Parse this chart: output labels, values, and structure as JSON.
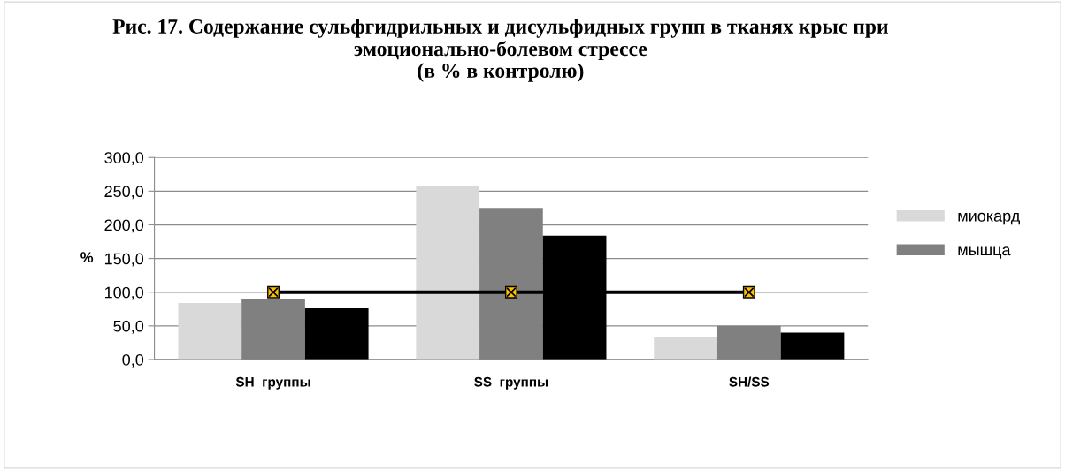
{
  "chart_data": {
    "type": "bar",
    "title": "Рис. 17. Содержание сульфгидрильных и дисульфидных групп в тканях крыс при эмоционально-болевом стрессе\n(в % в контролю)",
    "ylabel": "%",
    "categories": [
      "SH  группы",
      "SS  группы",
      "SH/SS"
    ],
    "series": [
      {
        "name": "миокард",
        "color": "#d9d9d9",
        "values": [
          84,
          257,
          33
        ]
      },
      {
        "name": "мышца",
        "color": "#808080",
        "values": [
          89,
          224,
          50
        ]
      },
      {
        "color": "#000000",
        "values": [
          76,
          184,
          40
        ]
      },
      {
        "type": "line",
        "color": "#000000",
        "values": [
          100,
          100,
          100
        ],
        "marker": "square"
      }
    ],
    "ylim": [
      0,
      300
    ],
    "yticks": [
      {
        "value": 0,
        "label": "0,0"
      },
      {
        "value": 50,
        "label": "50,0"
      },
      {
        "value": 100,
        "label": "100,0"
      },
      {
        "value": 150,
        "label": "150,0"
      },
      {
        "value": 200,
        "label": "200,0"
      },
      {
        "value": 250,
        "label": "250,0"
      },
      {
        "value": 300,
        "label": "300,0"
      }
    ],
    "grid": "y",
    "legend": "right"
  }
}
